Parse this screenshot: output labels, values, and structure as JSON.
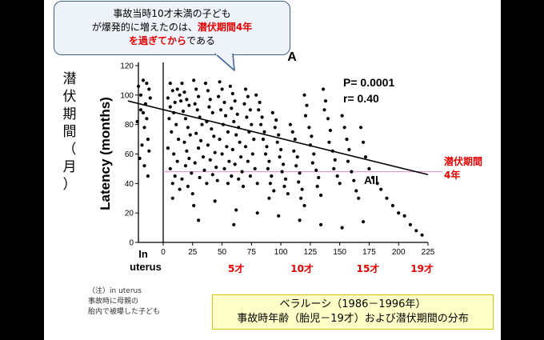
{
  "callout": {
    "line1": "事故当時10才未満の子ども",
    "line2_prefix": "が爆発的に増えたのは、",
    "line2_highlight": "潜伏期間4年",
    "line3_highlight": "を過ぎてから",
    "line3_suffix": "である"
  },
  "vertical_label": [
    "潜",
    "伏",
    "期",
    "間",
    "（",
    "月",
    "）"
  ],
  "note": {
    "line1": "（注）in uterus",
    "line2": "事故時に母親の",
    "line3": "胎内で被曝した子ども"
  },
  "caption": {
    "line1": "ベラルーシ（1986－1996年）",
    "line2": "事故時年齢（胎児－19才）および潜伏期間の分布"
  },
  "colors": {
    "red": "#e60000",
    "pink_line": "#e889c4",
    "caption_bg": "#ffffc8",
    "callout_border": "#3d5f8f"
  },
  "chart_data": {
    "type": "scatter",
    "panel_label": "A",
    "stats": {
      "p": "P= 0.0001",
      "r": "r= 0.40"
    },
    "series_label": "All",
    "ylabel": "Latency (months)",
    "yticks": [
      "0",
      "20",
      "40",
      "60",
      "80",
      "100",
      "120"
    ],
    "ylim": [
      0,
      120
    ],
    "xticks": [
      "0",
      "25",
      "50",
      "75",
      "100",
      "125",
      "150",
      "175",
      "200",
      "225"
    ],
    "xlim": [
      -30,
      225
    ],
    "x_extra_label": [
      "In",
      "uterus"
    ],
    "age_labels": [
      {
        "x": 62,
        "text": "5才"
      },
      {
        "x": 118,
        "text": "10才"
      },
      {
        "x": 174,
        "text": "15才"
      },
      {
        "x": 220,
        "text": "19才"
      }
    ],
    "regression": {
      "x": [
        -30,
        225
      ],
      "y": [
        96,
        46
      ]
    },
    "reference_line": {
      "y": 48,
      "label1": "潜伏期間",
      "label2": "4年"
    },
    "points": [
      [
        -21,
        106
      ],
      [
        -19,
        100
      ],
      [
        -17,
        88
      ],
      [
        -16,
        78
      ],
      [
        -18,
        66
      ],
      [
        -20,
        57
      ],
      [
        -15,
        94
      ],
      [
        -14,
        84
      ],
      [
        -22,
        82
      ],
      [
        -13,
        70
      ],
      [
        -12,
        62
      ],
      [
        -16,
        52
      ],
      [
        -14,
        108
      ],
      [
        -12,
        104
      ],
      [
        -11,
        98
      ],
      [
        -19,
        90
      ],
      [
        -17,
        110
      ],
      [
        -13,
        45
      ],
      [
        6,
        108
      ],
      [
        8,
        103
      ],
      [
        4,
        98
      ],
      [
        10,
        95
      ],
      [
        12,
        104
      ],
      [
        14,
        100
      ],
      [
        6,
        92
      ],
      [
        9,
        88
      ],
      [
        15,
        96
      ],
      [
        5,
        84
      ],
      [
        11,
        80
      ],
      [
        7,
        75
      ],
      [
        13,
        70
      ],
      [
        4,
        64
      ],
      [
        9,
        60
      ],
      [
        12,
        55
      ],
      [
        6,
        50
      ],
      [
        10,
        45
      ],
      [
        8,
        40
      ],
      [
        14,
        36
      ],
      [
        16,
        108
      ],
      [
        18,
        102
      ],
      [
        20,
        97
      ],
      [
        22,
        93
      ],
      [
        17,
        89
      ],
      [
        19,
        84
      ],
      [
        21,
        78
      ],
      [
        23,
        73
      ],
      [
        18,
        68
      ],
      [
        20,
        62
      ],
      [
        22,
        57
      ],
      [
        19,
        52
      ],
      [
        24,
        47
      ],
      [
        16,
        43
      ],
      [
        21,
        38
      ],
      [
        25,
        33
      ],
      [
        26,
        110
      ],
      [
        28,
        104
      ],
      [
        30,
        99
      ],
      [
        27,
        94
      ],
      [
        29,
        90
      ],
      [
        31,
        85
      ],
      [
        33,
        80
      ],
      [
        28,
        74
      ],
      [
        32,
        69
      ],
      [
        30,
        64
      ],
      [
        34,
        58
      ],
      [
        27,
        54
      ],
      [
        35,
        49
      ],
      [
        31,
        44
      ],
      [
        37,
        40
      ],
      [
        36,
        108
      ],
      [
        38,
        103
      ],
      [
        40,
        97
      ],
      [
        39,
        92
      ],
      [
        42,
        88
      ],
      [
        37,
        82
      ],
      [
        41,
        77
      ],
      [
        43,
        72
      ],
      [
        38,
        66
      ],
      [
        44,
        61
      ],
      [
        40,
        56
      ],
      [
        45,
        51
      ],
      [
        42,
        46
      ],
      [
        46,
        42
      ],
      [
        48,
        109
      ],
      [
        50,
        104
      ],
      [
        47,
        99
      ],
      [
        52,
        95
      ],
      [
        49,
        90
      ],
      [
        53,
        86
      ],
      [
        51,
        80
      ],
      [
        55,
        75
      ],
      [
        48,
        70
      ],
      [
        54,
        65
      ],
      [
        50,
        60
      ],
      [
        56,
        55
      ],
      [
        52,
        50
      ],
      [
        58,
        45
      ],
      [
        55,
        40
      ],
      [
        57,
        106
      ],
      [
        59,
        101
      ],
      [
        61,
        96
      ],
      [
        58,
        91
      ],
      [
        63,
        87
      ],
      [
        60,
        82
      ],
      [
        64,
        78
      ],
      [
        62,
        73
      ],
      [
        65,
        68
      ],
      [
        59,
        63
      ],
      [
        66,
        58
      ],
      [
        61,
        53
      ],
      [
        67,
        48
      ],
      [
        64,
        43
      ],
      [
        68,
        38
      ],
      [
        70,
        104
      ],
      [
        72,
        99
      ],
      [
        69,
        94
      ],
      [
        74,
        90
      ],
      [
        71,
        85
      ],
      [
        75,
        80
      ],
      [
        73,
        75
      ],
      [
        77,
        70
      ],
      [
        70,
        65
      ],
      [
        76,
        60
      ],
      [
        72,
        55
      ],
      [
        78,
        50
      ],
      [
        74,
        45
      ],
      [
        80,
        40
      ],
      [
        79,
        100
      ],
      [
        82,
        95
      ],
      [
        81,
        90
      ],
      [
        84,
        85
      ],
      [
        83,
        80
      ],
      [
        86,
        75
      ],
      [
        85,
        70
      ],
      [
        88,
        65
      ],
      [
        87,
        60
      ],
      [
        90,
        55
      ],
      [
        89,
        50
      ],
      [
        92,
        45
      ],
      [
        91,
        40
      ],
      [
        94,
        35
      ],
      [
        93,
        88
      ],
      [
        96,
        83
      ],
      [
        95,
        78
      ],
      [
        98,
        73
      ],
      [
        97,
        68
      ],
      [
        100,
        63
      ],
      [
        99,
        58
      ],
      [
        102,
        53
      ],
      [
        101,
        48
      ],
      [
        104,
        43
      ],
      [
        103,
        38
      ],
      [
        106,
        33
      ],
      [
        108,
        80
      ],
      [
        110,
        75
      ],
      [
        112,
        70
      ],
      [
        111,
        62
      ],
      [
        114,
        58
      ],
      [
        113,
        52
      ],
      [
        116,
        47
      ],
      [
        115,
        41
      ],
      [
        118,
        36
      ],
      [
        117,
        30
      ],
      [
        120,
        100
      ],
      [
        122,
        93
      ],
      [
        121,
        86
      ],
      [
        124,
        78
      ],
      [
        126,
        72
      ],
      [
        125,
        66
      ],
      [
        128,
        60
      ],
      [
        127,
        54
      ],
      [
        130,
        49
      ],
      [
        132,
        44
      ],
      [
        131,
        38
      ],
      [
        134,
        32
      ],
      [
        136,
        104
      ],
      [
        138,
        96
      ],
      [
        137,
        90
      ],
      [
        140,
        84
      ],
      [
        142,
        76
      ],
      [
        141,
        68
      ],
      [
        144,
        62
      ],
      [
        146,
        56
      ],
      [
        145,
        50
      ],
      [
        148,
        45
      ],
      [
        150,
        40
      ],
      [
        152,
        86
      ],
      [
        154,
        78
      ],
      [
        156,
        70
      ],
      [
        158,
        63
      ],
      [
        157,
        55
      ],
      [
        160,
        48
      ],
      [
        162,
        42
      ],
      [
        164,
        35
      ],
      [
        166,
        30
      ],
      [
        168,
        78
      ],
      [
        170,
        68
      ],
      [
        172,
        58
      ],
      [
        175,
        50
      ],
      [
        178,
        44
      ],
      [
        182,
        40
      ],
      [
        185,
        36
      ],
      [
        190,
        30
      ],
      [
        195,
        25
      ],
      [
        200,
        20
      ],
      [
        205,
        18
      ],
      [
        210,
        12
      ],
      [
        215,
        8
      ],
      [
        220,
        5
      ],
      [
        8,
        30
      ],
      [
        26,
        25
      ],
      [
        44,
        28
      ],
      [
        62,
        22
      ],
      [
        80,
        20
      ],
      [
        98,
        18
      ],
      [
        116,
        15
      ],
      [
        134,
        12
      ],
      [
        152,
        10
      ],
      [
        170,
        14
      ],
      [
        30,
        15
      ],
      [
        60,
        12
      ],
      [
        90,
        30
      ],
      [
        120,
        25
      ]
    ]
  }
}
